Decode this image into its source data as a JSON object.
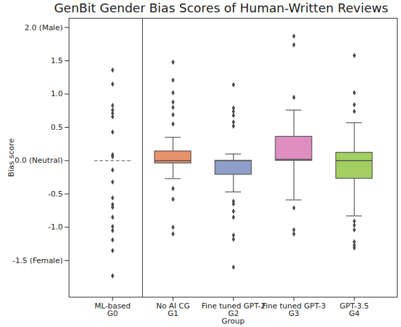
{
  "chart_data": {
    "type": "box",
    "title": "GenBit Gender Bias Scores of Human-Written Reviews",
    "x_label": "Group",
    "y_label": "Bias score",
    "ylim": [
      -2.05,
      2.14
    ],
    "yticks": [
      {
        "value": -1.5,
        "label": "-1.5 (Female)"
      },
      {
        "value": -1.0,
        "label": "-1.0"
      },
      {
        "value": -0.5,
        "label": "-0.5"
      },
      {
        "value": 0.0,
        "label": "0.0 (Neutral)"
      },
      {
        "value": 0.5,
        "label": "0.5"
      },
      {
        "value": 1.0,
        "label": "1.0"
      },
      {
        "value": 1.5,
        "label": "1.5"
      },
      {
        "value": 2.0,
        "label": "2.0 (Male)"
      }
    ],
    "marker": "diamond",
    "groups": [
      {
        "category": "ML-based\nG0",
        "type": "strip",
        "median": 0,
        "line_style": "dashed",
        "points": [
          1.36,
          1.15,
          0.83,
          0.76,
          0.71,
          0.66,
          0.43,
          0.09,
          0.06,
          -0.14,
          -0.32,
          -0.56,
          -0.66,
          -0.7,
          -0.85,
          -0.99,
          -1.05,
          -1.19,
          -1.35,
          -1.73
        ]
      },
      {
        "category": "No AI CG\nG1",
        "color": "#e8926c",
        "q1": -0.04,
        "median": 0.0,
        "q3": 0.14,
        "whisker_low": -0.27,
        "whisker_high": 0.35,
        "outliers": [
          1.48,
          1.21,
          1.02,
          0.88,
          0.8,
          0.69,
          0.55,
          -0.42,
          -0.58,
          -1.0,
          -1.1
        ]
      },
      {
        "category": "Fine tuned GPT-2\nG2",
        "color": "#8d9fca",
        "q1": -0.21,
        "median": 0.0,
        "q3": 0.0,
        "whisker_low": -0.47,
        "whisker_high": 0.1,
        "outliers": [
          1.14,
          0.79,
          0.74,
          0.68,
          0.58,
          0.52,
          -0.61,
          -0.65,
          -0.76,
          -0.85,
          -1.12,
          -1.18,
          -1.6
        ]
      },
      {
        "category": "Fine tuned GPT-3\nG3",
        "color": "#df8ec1",
        "q1": 0.0,
        "median": 0.02,
        "q3": 0.36,
        "whisker_low": -0.59,
        "whisker_high": 0.76,
        "outliers": [
          1.87,
          1.74,
          0.95,
          -0.71,
          -1.04,
          -1.1
        ]
      },
      {
        "category": "GPT-3.5\nG4",
        "color": "#a3cf62",
        "q1": -0.27,
        "median": 0.0,
        "q3": 0.12,
        "whisker_low": -0.83,
        "whisker_high": 0.57,
        "outliers": [
          1.58,
          1.02,
          0.84,
          0.74,
          -0.91,
          -0.97,
          -1.04,
          -1.22,
          -1.27,
          -1.31
        ]
      }
    ]
  }
}
